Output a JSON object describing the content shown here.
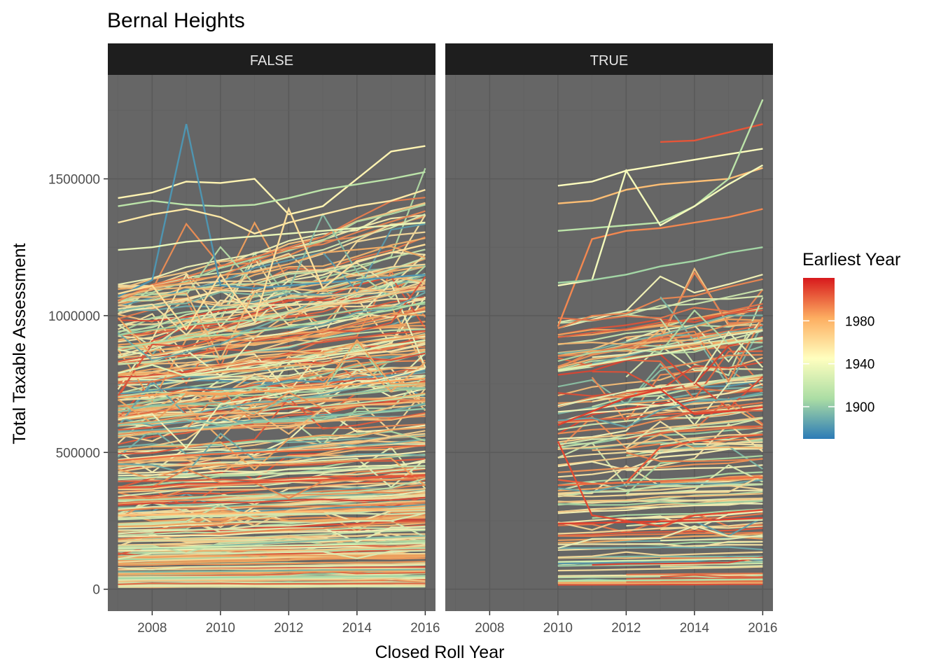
{
  "chart_data": {
    "type": "line",
    "title": "Bernal Heights",
    "xlabel": "Closed Roll Year",
    "ylabel": "Total Taxable Assessment",
    "xlim": [
      2006.7,
      2016.3
    ],
    "ylim": [
      -80000,
      1880000
    ],
    "x_ticks": [
      2008,
      2010,
      2012,
      2014,
      2016
    ],
    "x_tick_labels": [
      "2008",
      "2010",
      "2012",
      "2014",
      "2016"
    ],
    "y_ticks": [
      0,
      500000,
      1000000,
      1500000
    ],
    "y_tick_labels": [
      "0",
      "500000",
      "1000000",
      "1500000"
    ],
    "grid": true,
    "facets": [
      {
        "label": "FALSE",
        "note": "Dense set of per-parcel trajectories 2007–2016; representative series listed",
        "series": [
          {
            "x": [
              2007,
              2008,
              2009,
              2010,
              2011,
              2012,
              2013,
              2014,
              2015,
              2016
            ],
            "y": [
              1430000,
              1450000,
              1490000,
              1485000,
              1500000,
              1370000,
              1400000,
              1500000,
              1600000,
              1620000
            ],
            "year": 1950
          },
          {
            "x": [
              2007,
              2008,
              2009,
              2010,
              2011,
              2012,
              2013,
              2014,
              2015,
              2016
            ],
            "y": [
              1400000,
              1420000,
              1405000,
              1400000,
              1405000,
              1430000,
              1460000,
              1480000,
              1500000,
              1525000
            ],
            "year": 1915
          },
          {
            "x": [
              2007,
              2008,
              2009,
              2010,
              2011,
              2012,
              2013,
              2014,
              2015,
              2016
            ],
            "y": [
              1070000,
              1130000,
              1700000,
              1110000,
              1100000,
              1110000,
              1120000,
              1130000,
              1140000,
              1150000
            ],
            "year": 1880
          },
          {
            "x": [
              2007,
              2008,
              2009,
              2010,
              2011,
              2012,
              2013,
              2014,
              2015,
              2016
            ],
            "y": [
              1340000,
              1370000,
              1390000,
              1360000,
              1300000,
              1340000,
              1370000,
              1400000,
              1420000,
              1460000
            ],
            "year": 1955
          },
          {
            "x": [
              2007,
              2008,
              2009,
              2010,
              2011,
              2012,
              2013,
              2014,
              2015,
              2016
            ],
            "y": [
              1240000,
              1250000,
              1270000,
              1280000,
              1290000,
              1300000,
              1310000,
              1320000,
              1330000,
              1340000
            ],
            "year": 1935
          },
          {
            "x": [
              2007,
              2008,
              2009,
              2010,
              2011,
              2012,
              2013,
              2014,
              2015,
              2016
            ],
            "y": [
              1080000,
              1110000,
              950000,
              1150000,
              980000,
              1390000,
              1100000,
              1200000,
              1230000,
              1260000
            ],
            "year": 1960
          },
          {
            "x": [
              2007,
              2008,
              2009,
              2010,
              2011,
              2012,
              2013,
              2014,
              2015,
              2016
            ],
            "y": [
              880000,
              900000,
              920000,
              930000,
              940000,
              960000,
              980000,
              1000000,
              1020000,
              1050000
            ],
            "year": 1910
          },
          {
            "x": [
              2007,
              2008,
              2009,
              2010,
              2011,
              2012,
              2013,
              2014,
              2015,
              2016
            ],
            "y": [
              790000,
              820000,
              780000,
              800000,
              810000,
              830000,
              850000,
              870000,
              890000,
              910000
            ],
            "year": 1930
          },
          {
            "x": [
              2007,
              2008,
              2009,
              2010,
              2011,
              2012,
              2013,
              2014,
              2015,
              2016
            ],
            "y": [
              700000,
              710000,
              720000,
              715000,
              720000,
              730000,
              740000,
              750000,
              760000,
              770000
            ],
            "year": 1985
          },
          {
            "x": [
              2007,
              2008,
              2009,
              2010,
              2011,
              2012,
              2013,
              2014,
              2015,
              2016
            ],
            "y": [
              600000,
              610000,
              620000,
              600000,
              610000,
              620000,
              630000,
              640000,
              650000,
              660000
            ],
            "year": 1900
          },
          {
            "x": [
              2007,
              2008,
              2009,
              2010,
              2011,
              2012,
              2013,
              2014,
              2015,
              2016
            ],
            "y": [
              470000,
              480000,
              490000,
              495000,
              500000,
              505000,
              510000,
              515000,
              520000,
              525000
            ],
            "year": 1998
          },
          {
            "x": [
              2007,
              2008,
              2009,
              2010,
              2011,
              2012,
              2013,
              2014,
              2015,
              2016
            ],
            "y": [
              370000,
              375000,
              385000,
              385000,
              390000,
              395000,
              400000,
              405000,
              410000,
              415000
            ],
            "year": 2005
          },
          {
            "x": [
              2007,
              2008,
              2009,
              2010,
              2011,
              2012,
              2013,
              2014,
              2015,
              2016
            ],
            "y": [
              270000,
              272000,
              275000,
              277000,
              280000,
              282000,
              285000,
              287000,
              290000,
              292000
            ],
            "year": 1975
          },
          {
            "x": [
              2007,
              2008,
              2009,
              2010,
              2011,
              2012,
              2013,
              2014,
              2015,
              2016
            ],
            "y": [
              150000,
              152000,
              154000,
              156000,
              158000,
              160000,
              162000,
              164000,
              166000,
              168000
            ],
            "year": 1925
          },
          {
            "x": [
              2007,
              2008,
              2009,
              2010,
              2011,
              2012,
              2013,
              2014,
              2015,
              2016
            ],
            "y": [
              40000,
              41000,
              42000,
              43000,
              44000,
              45000,
              46000,
              47000,
              48000,
              49000
            ],
            "year": 1905
          }
        ]
      },
      {
        "label": "TRUE",
        "note": "Trajectories begin in 2010 or later; representative series listed",
        "series": [
          {
            "x": [
              2010,
              2011,
              2012,
              2013,
              2014,
              2015,
              2016
            ],
            "y": [
              1475000,
              1490000,
              1530000,
              1550000,
              1570000,
              1590000,
              1610000
            ],
            "year": 1945
          },
          {
            "x": [
              2010,
              2011,
              2012,
              2013,
              2014,
              2015,
              2016
            ],
            "y": [
              1410000,
              1420000,
              1460000,
              1480000,
              1490000,
              1500000,
              1540000
            ],
            "year": 1975
          },
          {
            "x": [
              2013,
              2014,
              2015,
              2016
            ],
            "y": [
              1635000,
              1640000,
              1670000,
              1700000
            ],
            "year": 2005
          },
          {
            "x": [
              2010,
              2011,
              2012,
              2013,
              2014,
              2015,
              2016
            ],
            "y": [
              1310000,
              1320000,
              1330000,
              1340000,
              1400000,
              1500000,
              1790000
            ],
            "year": 1915
          },
          {
            "x": [
              2010,
              2011,
              2012,
              2013,
              2014,
              2015,
              2016
            ],
            "y": [
              960000,
              1280000,
              1310000,
              1320000,
              1340000,
              1360000,
              1390000
            ],
            "year": 1992
          },
          {
            "x": [
              2010,
              2011,
              2012,
              2013,
              2014,
              2015,
              2016
            ],
            "y": [
              1110000,
              1130000,
              1530000,
              1330000,
              1400000,
              1480000,
              1550000
            ],
            "year": 1940
          },
          {
            "x": [
              2010,
              2011,
              2012,
              2013,
              2014,
              2015,
              2016
            ],
            "y": [
              1120000,
              1130000,
              1150000,
              1180000,
              1200000,
              1230000,
              1250000
            ],
            "year": 1905
          },
          {
            "x": [
              2010,
              2011,
              2012,
              2013,
              2014,
              2015,
              2016
            ],
            "y": [
              800000,
              820000,
              840000,
              860000,
              880000,
              900000,
              920000
            ],
            "year": 1930
          },
          {
            "x": [
              2010,
              2011,
              2012,
              2013,
              2014,
              2015,
              2016
            ],
            "y": [
              600000,
              650000,
              700000,
              730000,
              640000,
              650000,
              665000
            ],
            "year": 2010
          },
          {
            "x": [
              2010,
              2011,
              2012,
              2013,
              2014,
              2015,
              2016
            ],
            "y": [
              540000,
              270000,
              250000,
              230000,
              270000,
              280000,
              290000
            ],
            "year": 2008
          },
          {
            "x": [
              2010,
              2011,
              2012,
              2013,
              2014,
              2015,
              2016
            ],
            "y": [
              400000,
              385000,
              390000,
              520000,
              540000,
              555000,
              565000
            ],
            "year": 2003
          },
          {
            "x": [
              2010,
              2011,
              2012,
              2013,
              2014,
              2015,
              2016
            ],
            "y": [
              380000,
              385000,
              390000,
              395000,
              400000,
              405000,
              410000
            ],
            "year": 1998
          },
          {
            "x": [
              2010,
              2011,
              2012,
              2013,
              2014,
              2015,
              2016
            ],
            "y": [
              240000,
              242000,
              245000,
              248000,
              250000,
              255000,
              260000
            ],
            "year": 2010
          },
          {
            "x": [
              2010,
              2011,
              2012,
              2013,
              2014,
              2015,
              2016
            ],
            "y": [
              100000,
              102000,
              104000,
              106000,
              108000,
              110000,
              112000
            ],
            "year": 1925
          },
          {
            "x": [
              2010,
              2011,
              2012,
              2013,
              2014,
              2015,
              2016
            ],
            "y": [
              30000,
              31000,
              32000,
              33000,
              34000,
              35000,
              36000
            ],
            "year": 1910
          }
        ]
      }
    ],
    "legend": {
      "title": "Earliest Year",
      "position": "right",
      "range": [
        1870,
        2020
      ],
      "ticks": [
        1900,
        1940,
        1980
      ],
      "tick_labels": [
        "1900",
        "1940",
        "1980"
      ],
      "palette": "Spectral",
      "colors": [
        "#2c7bb6",
        "#abdda4",
        "#ffffbf",
        "#fdae61",
        "#d7191c"
      ]
    },
    "colors": {
      "panel_background": "#666666",
      "grid_major": "#5a5a5a",
      "grid_minor": "#616161",
      "strip_background": "#1e1e1e",
      "strip_text": "#e6e6e6"
    }
  }
}
